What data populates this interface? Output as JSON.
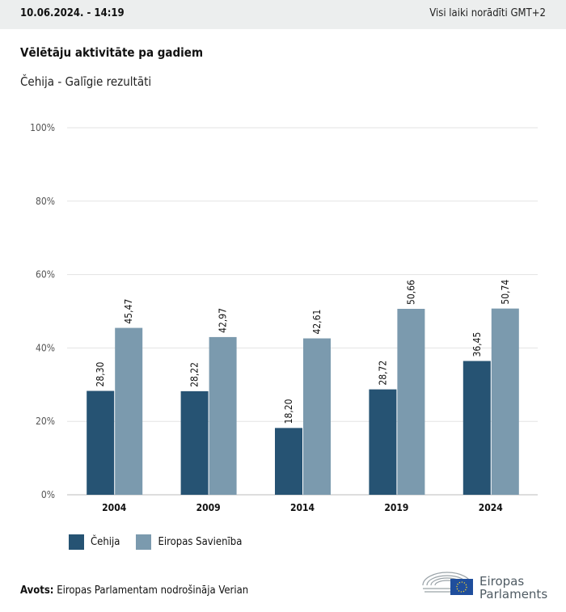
{
  "header": {
    "datetime": "10.06.2024. - 14:19",
    "timezone_note": "Visi laiki norādīti GMT+2"
  },
  "title": "Vēlētāju aktivitāte pa gadiem",
  "subtitle": "Čehija - Galīgie rezultāti",
  "chart_data": {
    "type": "bar",
    "categories": [
      "2004",
      "2009",
      "2014",
      "2019",
      "2024"
    ],
    "series": [
      {
        "name": "Čehija",
        "values": [
          28.3,
          28.22,
          18.2,
          28.72,
          36.45
        ],
        "labels": [
          "28,30",
          "28,22",
          "18,20",
          "28,72",
          "36,45"
        ],
        "color": "#265373"
      },
      {
        "name": "Eiropas Savienība",
        "values": [
          45.47,
          42.97,
          42.61,
          50.66,
          50.74
        ],
        "labels": [
          "45,47",
          "42,97",
          "42,61",
          "50,66",
          "50,74"
        ],
        "color": "#7b9aae"
      }
    ],
    "ylim": [
      0,
      100
    ],
    "yticks": [
      "0%",
      "20%",
      "40%",
      "60%",
      "80%",
      "100%"
    ],
    "grid": true,
    "legend": "bottom-left"
  },
  "source": {
    "label": "Avots:",
    "text": "Eiropas Parlamentam nodrošināja Verian"
  },
  "logo": {
    "text_line1": "Eiropas",
    "text_line2": "Parlaments"
  }
}
